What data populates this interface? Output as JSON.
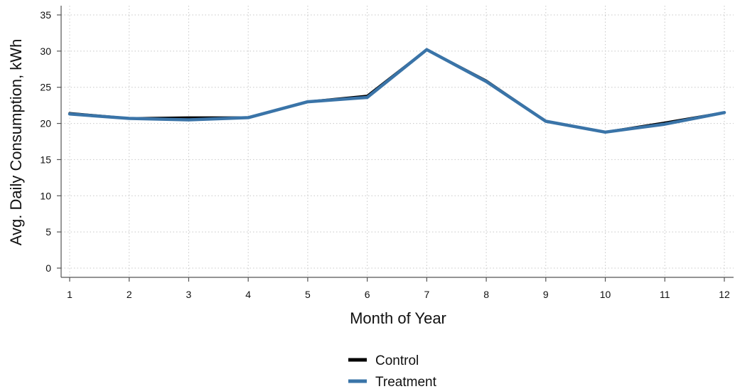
{
  "chart_data": {
    "type": "line",
    "xlabel": "Month of Year",
    "ylabel": "Avg. Daily Consumption, kWh",
    "x": [
      1,
      2,
      3,
      4,
      5,
      6,
      7,
      8,
      9,
      10,
      11,
      12
    ],
    "xlim": [
      1,
      12
    ],
    "ylim": [
      0,
      35
    ],
    "yticks": [
      0,
      5,
      10,
      15,
      20,
      25,
      30,
      35
    ],
    "grid": true,
    "legend_position": "bottom-center",
    "series": [
      {
        "name": "Control",
        "color": "#000000",
        "values": [
          21.4,
          20.7,
          20.8,
          20.8,
          23.0,
          23.8,
          30.2,
          25.9,
          20.3,
          18.8,
          20.1,
          21.5
        ]
      },
      {
        "name": "Treatment",
        "color": "#3a74a8",
        "values": [
          21.3,
          20.7,
          20.5,
          20.8,
          23.0,
          23.6,
          30.2,
          25.8,
          20.3,
          18.8,
          19.9,
          21.5
        ]
      }
    ]
  }
}
